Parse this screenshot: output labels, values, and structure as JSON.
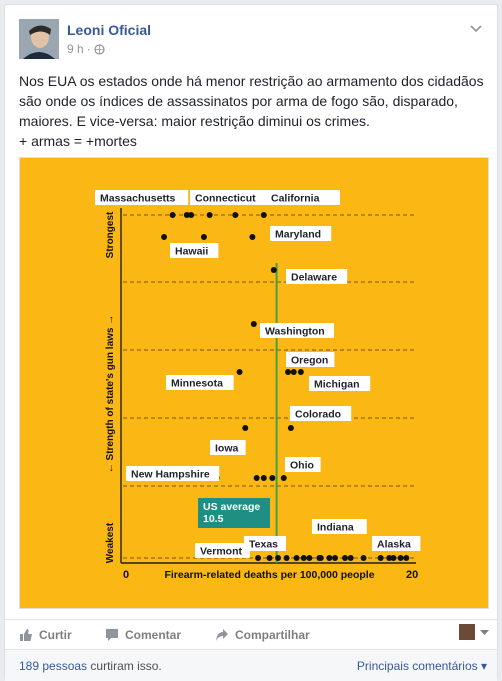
{
  "post": {
    "author": "Leoni Oficial",
    "time": "9 h",
    "separator": "·",
    "text": "Nos EUA os estados onde há menor restrição ao armamento dos cidadãos são onde os índices de assassinatos por arma de fogo são, disparado, maiores. E vice-versa: maior restrição diminui os crimes.\n+ armas = +mortes"
  },
  "chart_data": {
    "type": "scatter",
    "xlabel": "Firearm-related deaths per 100,000 people",
    "ylabel": "← Strength of state's gun laws →",
    "xlim": [
      0,
      20
    ],
    "x_ticks": [
      "0",
      "20"
    ],
    "y_band_labels": [
      "Strongest",
      "Weakest"
    ],
    "reference_line": {
      "label": "US average\n10.5",
      "x": 10.5
    },
    "colors": {
      "background": "#fbb713",
      "reference_line": "#45a048",
      "label_box": "#ffffff",
      "average_box": "#1f8f83"
    },
    "bands": [
      {
        "name": "Strongest",
        "points": [
          3.2,
          4.2,
          4.5,
          5.8,
          7.6,
          9.6
        ]
      },
      {
        "name": "band-1b",
        "points": [
          2.6,
          5.4,
          8.8
        ]
      },
      {
        "name": "band-2",
        "points": [
          10.3
        ]
      },
      {
        "name": "band-3",
        "points": [
          8.9,
          11.3,
          11.7,
          12.2,
          7.9
        ]
      },
      {
        "name": "band-4",
        "points": [
          8.3,
          11.5
        ]
      },
      {
        "name": "band-5",
        "points": [
          6.3,
          9.1,
          9.6,
          10.2,
          11.0
        ]
      },
      {
        "name": "Weakest",
        "points": [
          9.2,
          10.0,
          10.6,
          11.2,
          11.9,
          12.4,
          13.5,
          14.2,
          14.6,
          15.7,
          16.6,
          17.8,
          18.4,
          19.2,
          19.6,
          12.8,
          13.6,
          15.3,
          18.7
        ]
      }
    ],
    "labels": [
      {
        "text": "Massachusetts",
        "x": 3.2
      },
      {
        "text": "Connecticut",
        "x": 4.5
      },
      {
        "text": "California",
        "x": 9.6
      },
      {
        "text": "Hawaii",
        "x": 2.6
      },
      {
        "text": "Maryland",
        "x": 8.8
      },
      {
        "text": "Delaware",
        "x": 10.3
      },
      {
        "text": "Washington",
        "x": 8.9
      },
      {
        "text": "Oregon",
        "x": 11.3
      },
      {
        "text": "Minnesota",
        "x": 7.9
      },
      {
        "text": "Michigan",
        "x": 12.2
      },
      {
        "text": "Colorado",
        "x": 11.5
      },
      {
        "text": "Iowa",
        "x": 8.3
      },
      {
        "text": "New Hampshire",
        "x": 6.3
      },
      {
        "text": "Ohio",
        "x": 11.0
      },
      {
        "text": "Indiana",
        "x": 13.6
      },
      {
        "text": "Texas",
        "x": 10.0
      },
      {
        "text": "Vermont",
        "x": 9.2
      },
      {
        "text": "Alaska",
        "x": 18.7
      }
    ]
  },
  "actions": {
    "like": "Curtir",
    "comment": "Comentar",
    "share": "Compartilhar"
  },
  "footer": {
    "likes_count": "189 pessoas",
    "likes_suffix": "curtiram isso.",
    "sort": "Principais comentários ▾"
  }
}
